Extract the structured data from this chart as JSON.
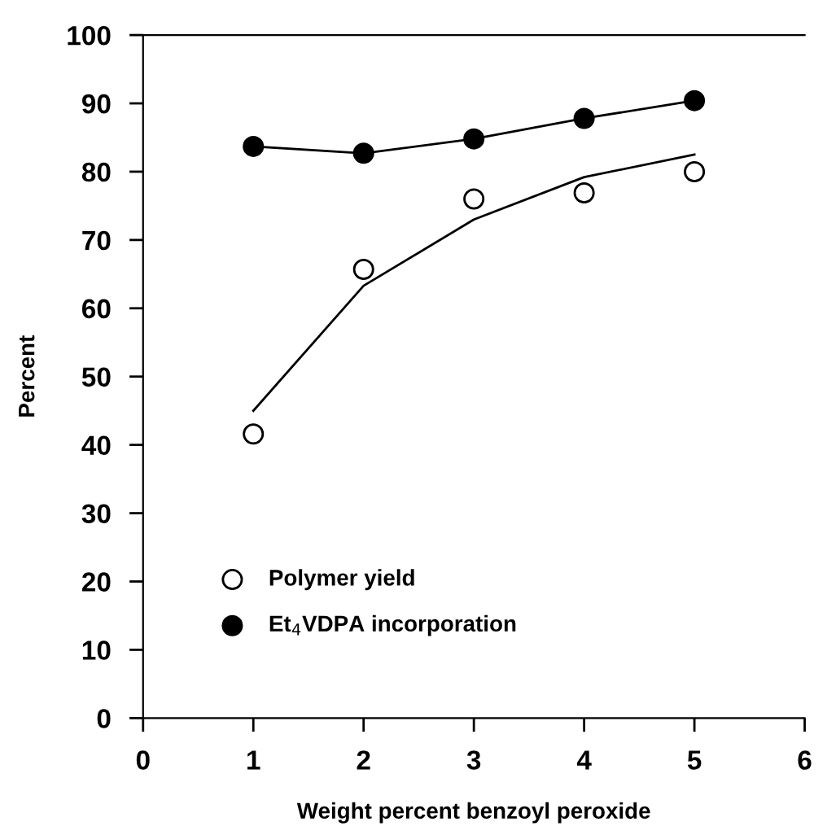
{
  "chart_data": {
    "type": "scatter",
    "xlabel": "Weight percent benzoyl peroxide",
    "ylabel": "Percent",
    "x": [
      1,
      2,
      3,
      4,
      5
    ],
    "series": [
      {
        "name": "Polymer yield",
        "marker": "circle",
        "color": "#ffffff",
        "values": [
          41.6,
          65.7,
          76,
          76.9,
          80
        ]
      },
      {
        "name": "Et$_{4}$VDPA incorporation",
        "marker": "circle",
        "color": "#000000",
        "values": [
          83.7,
          82.7,
          84.8,
          87.8,
          90.4
        ]
      },
      {
        "type": "line",
        "color": "#000000",
        "x": [
          1,
          2,
          3,
          4,
          5
        ],
        "values": [
          45,
          63.3,
          73,
          79.2,
          82.5
        ]
      },
      {
        "type": "line",
        "color": "#000000",
        "x": [
          1,
          2,
          3,
          4,
          5
        ],
        "values": [
          83.7,
          82.7,
          84.8,
          87.8,
          90.4
        ]
      }
    ],
    "xlim": [
      0,
      6
    ],
    "xticks": [
      0,
      1,
      2,
      3,
      4,
      5,
      6
    ],
    "ylim": [
      0,
      100
    ],
    "yticks": [
      0,
      10,
      20,
      30,
      40,
      50,
      60,
      70,
      80,
      90,
      100
    ],
    "grid": false,
    "legend": "bottom left"
  }
}
